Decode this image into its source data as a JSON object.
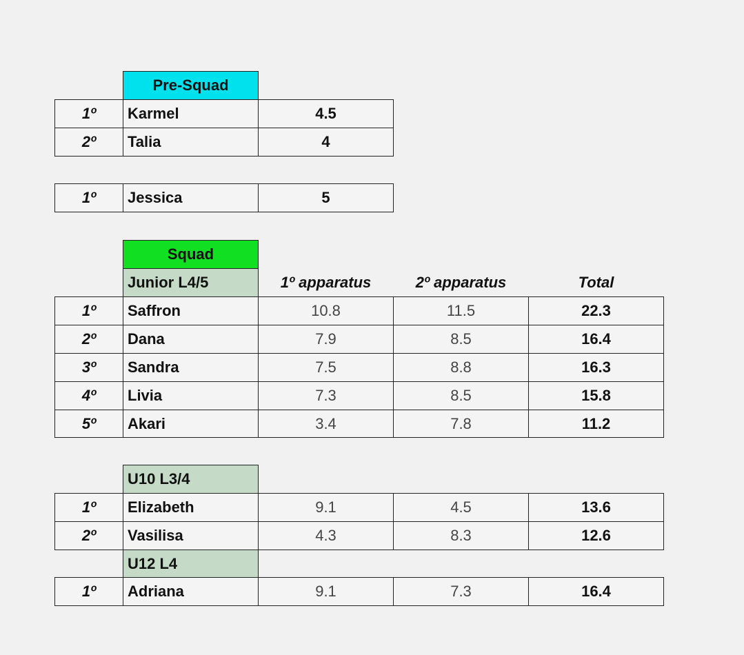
{
  "pre_squad": {
    "title": "Pre-Squad",
    "rows": [
      {
        "rank": "1º",
        "name": "Karmel",
        "score": "4.5"
      },
      {
        "rank": "2º",
        "name": "Talia",
        "score": "4"
      }
    ],
    "extra": {
      "rank": "1º",
      "name": "Jessica",
      "score": "5"
    }
  },
  "squad": {
    "title": "Squad",
    "columns": [
      "1º apparatus",
      "2º apparatus",
      "Total"
    ],
    "junior": {
      "label": "Junior L4/5",
      "rows": [
        {
          "rank": "1º",
          "name": "Saffron",
          "a1": "10.8",
          "a2": "11.5",
          "total": "22.3"
        },
        {
          "rank": "2º",
          "name": "Dana",
          "a1": "7.9",
          "a2": "8.5",
          "total": "16.4"
        },
        {
          "rank": "3º",
          "name": "Sandra",
          "a1": "7.5",
          "a2": "8.8",
          "total": "16.3"
        },
        {
          "rank": "4º",
          "name": "Livia",
          "a1": "7.3",
          "a2": "8.5",
          "total": "15.8"
        },
        {
          "rank": "5º",
          "name": "Akari",
          "a1": "3.4",
          "a2": "7.8",
          "total": "11.2"
        }
      ]
    },
    "u10": {
      "label": "U10 L3/4",
      "rows": [
        {
          "rank": "1º",
          "name": "Elizabeth",
          "a1": "9.1",
          "a2": "4.5",
          "total": "13.6"
        },
        {
          "rank": "2º",
          "name": "Vasilisa",
          "a1": "4.3",
          "a2": "8.3",
          "total": "12.6"
        }
      ]
    },
    "u12": {
      "label": "U12 L4",
      "rows": [
        {
          "rank": "1º",
          "name": "Adriana",
          "a1": "9.1",
          "a2": "7.3",
          "total": "16.4"
        }
      ]
    }
  }
}
